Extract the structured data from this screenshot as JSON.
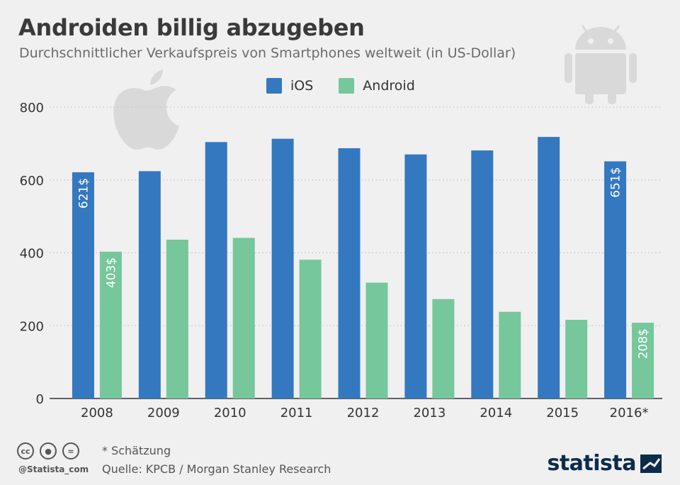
{
  "header": {
    "title": "Androiden billig abzugeben",
    "subtitle": "Durchschnittlicher Verkaufspreis von Smartphones weltweit (in US-Dollar)"
  },
  "colors": {
    "ios": "#3478c0",
    "android": "#76c79b",
    "axis": "#333333",
    "grid": "#c8c8c8",
    "background": "#f0f0f0"
  },
  "icons": [
    "apple-logo-icon",
    "android-robot-icon",
    "cc-icon",
    "cc-by-icon",
    "cc-nd-icon",
    "statista-logo-icon"
  ],
  "chart_data": {
    "type": "bar",
    "categories": [
      "2008",
      "2009",
      "2010",
      "2011",
      "2012",
      "2013",
      "2014",
      "2015",
      "2016*"
    ],
    "series": [
      {
        "name": "iOS",
        "values": [
          621,
          624,
          704,
          713,
          687,
          670,
          681,
          718,
          651
        ]
      },
      {
        "name": "Android",
        "values": [
          403,
          436,
          441,
          381,
          318,
          273,
          238,
          216,
          208
        ]
      }
    ],
    "data_labels": [
      {
        "series": 0,
        "index": 0,
        "text": "621$"
      },
      {
        "series": 1,
        "index": 0,
        "text": "403$"
      },
      {
        "series": 0,
        "index": 8,
        "text": "651$"
      },
      {
        "series": 1,
        "index": 8,
        "text": "208$"
      }
    ],
    "yticks": [
      "0",
      "200",
      "400",
      "600",
      "800"
    ],
    "ylim": [
      0,
      800
    ],
    "grid": true,
    "legend_position": "top-center"
  },
  "footer": {
    "note": "* Schätzung",
    "source": "Quelle: KPCB / Morgan Stanley Research",
    "handle": "@Statista_com",
    "brand": "statista"
  }
}
